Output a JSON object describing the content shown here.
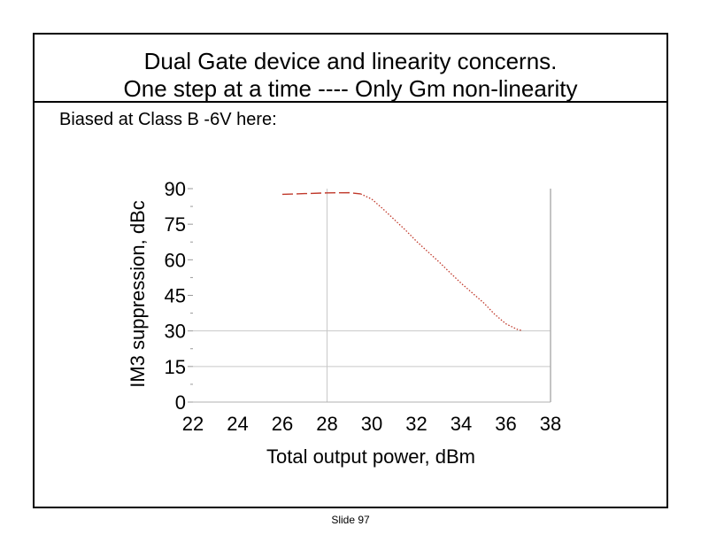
{
  "slide": {
    "title_line1": "Dual Gate device and linearity concerns.",
    "title_line2": "One step at a time ----   Only Gm non-linearity",
    "subtitle": "Biased at Class B -6V here:",
    "footer": "Slide 97"
  },
  "chart_data": {
    "type": "line",
    "title": "",
    "xlabel": "Total output power, dBm",
    "ylabel": "IM3 suppression, dBc",
    "xlim": [
      22,
      38
    ],
    "ylim": [
      0,
      90
    ],
    "xticks": [
      22,
      24,
      26,
      28,
      30,
      32,
      34,
      36,
      38
    ],
    "yticks": [
      0,
      15,
      30,
      45,
      60,
      75,
      90
    ],
    "grid_x": [
      28
    ],
    "grid_y": [
      30,
      15
    ],
    "grid": true,
    "legend": "none",
    "series": [
      {
        "color": "#c0392b",
        "x": [
          26.0,
          27.0,
          28.0,
          29.0,
          29.5,
          30.0,
          30.5,
          31.0,
          31.5,
          32.0,
          32.5,
          33.0,
          33.5,
          34.0,
          34.5,
          35.0,
          35.5,
          36.0,
          36.5,
          36.7
        ],
        "y": [
          87.6,
          87.9,
          88.2,
          88.3,
          87.8,
          85.6,
          81.5,
          77.0,
          72.6,
          67.8,
          63.5,
          59.2,
          54.6,
          50.1,
          46.0,
          41.9,
          37.0,
          33.0,
          30.7,
          30.2
        ]
      }
    ]
  }
}
